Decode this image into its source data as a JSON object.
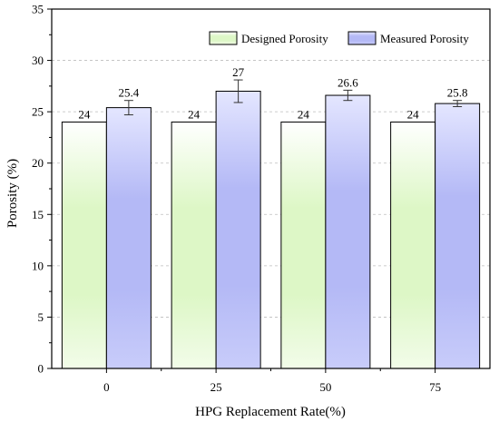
{
  "chart_data": {
    "type": "bar",
    "title": "",
    "xlabel": "HPG Replacement Rate(%)",
    "ylabel": "Porosity (%)",
    "categories": [
      "0",
      "25",
      "50",
      "75"
    ],
    "ylim": [
      0,
      35
    ],
    "yticks": [
      0,
      5,
      10,
      15,
      20,
      25,
      30,
      35
    ],
    "grid": true,
    "legend_position": "top-right",
    "series": [
      {
        "name": "Designed Porosity",
        "values": [
          24,
          24,
          24,
          24
        ],
        "labels": [
          "24",
          "24",
          "24",
          "24"
        ],
        "color": "#ddf7c6"
      },
      {
        "name": "Measured Porosity",
        "values": [
          25.4,
          27,
          26.6,
          25.8
        ],
        "labels": [
          "25.4",
          "27",
          "26.6",
          "25.8"
        ],
        "errors": [
          0.7,
          1.1,
          0.5,
          0.3
        ],
        "color": "#b4b9f6"
      }
    ]
  }
}
